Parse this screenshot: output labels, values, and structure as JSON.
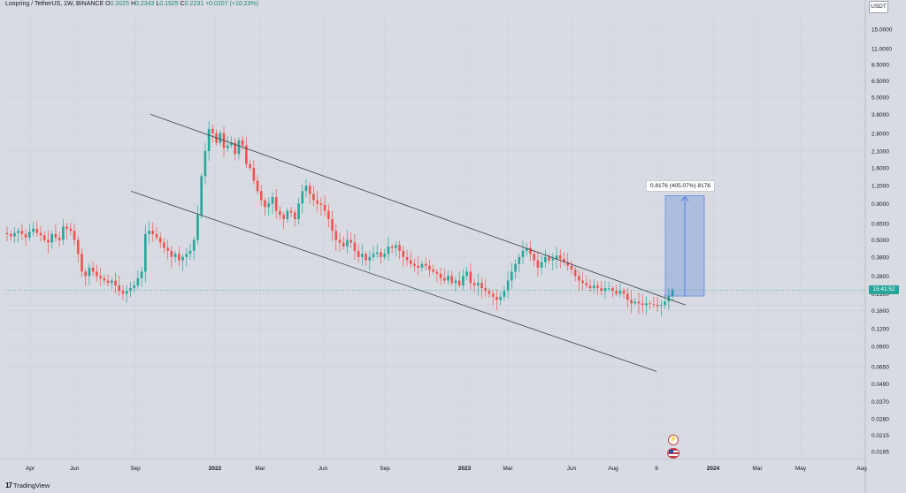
{
  "header": {
    "symbol": "Loopring / TetherUS, 1W, BINANCE",
    "open_label": "O",
    "open": "0.2025",
    "high_label": "H",
    "high": "0.2343",
    "low_label": "L",
    "low": "0.1925",
    "close_label": "C",
    "close": "0.2231",
    "change": "+0.0207 (+10.23%)"
  },
  "currency": "USDT",
  "current_price_tag": "15:41:52",
  "measure_label": "0.8176 (405.07%) 8176",
  "branding": {
    "mark": "17",
    "name": "TradingView"
  },
  "colors": {
    "background": "#d9dbe2",
    "up": "#26a69a",
    "down": "#ef5350",
    "trendline": "#3a3f4a",
    "measure": "#3d6fd6"
  },
  "chart_data": {
    "type": "candlestick",
    "title": "",
    "scale": "log",
    "ylim": [
      0.0165,
      15.0
    ],
    "x_ticks": [
      "Apr",
      "Jun",
      "Sep",
      "2022",
      "Mar",
      "Jun",
      "Sep",
      "2023",
      "Mar",
      "Jun",
      "Aug",
      "9",
      "2024",
      "Mar",
      "May",
      "Aug"
    ],
    "y_ticks": [
      "15.0000",
      "11.0000",
      "8.5000",
      "6.5000",
      "5.0000",
      "3.8000",
      "2.8000",
      "2.1000",
      "1.6000",
      "1.2000",
      "0.9000",
      "0.6500",
      "0.5000",
      "0.3800",
      "0.2800",
      "0.2100",
      "0.1600",
      "0.1200",
      "0.0900",
      "0.0650",
      "0.0490",
      "0.0370",
      "0.0280",
      "0.0215",
      "0.0165"
    ],
    "candles_close": [
      0.55,
      0.53,
      0.56,
      0.58,
      0.55,
      0.52,
      0.57,
      0.6,
      0.56,
      0.54,
      0.5,
      0.48,
      0.55,
      0.52,
      0.5,
      0.62,
      0.6,
      0.58,
      0.5,
      0.4,
      0.3,
      0.28,
      0.32,
      0.3,
      0.28,
      0.27,
      0.26,
      0.25,
      0.26,
      0.24,
      0.22,
      0.21,
      0.22,
      0.23,
      0.24,
      0.27,
      0.3,
      0.55,
      0.58,
      0.55,
      0.52,
      0.48,
      0.44,
      0.42,
      0.38,
      0.4,
      0.36,
      0.38,
      0.4,
      0.42,
      0.5,
      0.75,
      1.4,
      2.1,
      3.0,
      2.8,
      2.4,
      2.8,
      2.2,
      2.3,
      2.4,
      2.0,
      2.5,
      2.3,
      1.7,
      1.6,
      1.3,
      1.1,
      0.95,
      0.85,
      0.9,
      1.0,
      0.8,
      0.75,
      0.7,
      0.8,
      0.78,
      0.7,
      0.9,
      1.1,
      1.2,
      1.05,
      0.95,
      0.9,
      0.88,
      0.8,
      0.7,
      0.58,
      0.5,
      0.48,
      0.45,
      0.5,
      0.48,
      0.42,
      0.38,
      0.4,
      0.36,
      0.38,
      0.4,
      0.41,
      0.38,
      0.4,
      0.45,
      0.44,
      0.46,
      0.42,
      0.38,
      0.36,
      0.34,
      0.33,
      0.32,
      0.34,
      0.33,
      0.31,
      0.3,
      0.29,
      0.27,
      0.26,
      0.28,
      0.25,
      0.26,
      0.24,
      0.28,
      0.3,
      0.25,
      0.24,
      0.25,
      0.23,
      0.22,
      0.21,
      0.2,
      0.19,
      0.2,
      0.22,
      0.26,
      0.3,
      0.34,
      0.38,
      0.42,
      0.44,
      0.4,
      0.36,
      0.32,
      0.35,
      0.38,
      0.36,
      0.37,
      0.39,
      0.37,
      0.35,
      0.33,
      0.31,
      0.28,
      0.26,
      0.25,
      0.24,
      0.23,
      0.24,
      0.23,
      0.22,
      0.23,
      0.23,
      0.22,
      0.21,
      0.22,
      0.21,
      0.19,
      0.18,
      0.185,
      0.18,
      0.175,
      0.18,
      0.178,
      0.176,
      0.172,
      0.175,
      0.185,
      0.2025,
      0.2231
    ]
  },
  "annotations": {
    "upper_trendline": {
      "from_price": 3.8,
      "to_price": 0.175
    },
    "lower_trendline": {
      "from_price": 1.1,
      "to_price": 0.06
    },
    "measure_box": {
      "from_price": 0.2025,
      "to_price": 1.02
    }
  }
}
